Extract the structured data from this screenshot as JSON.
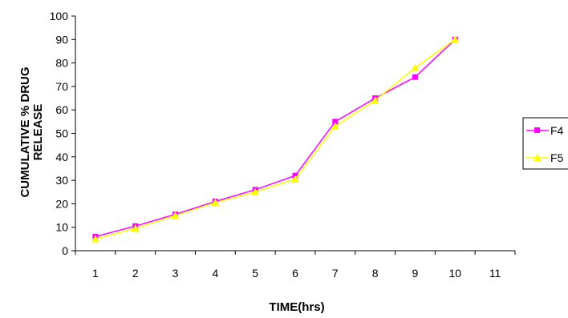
{
  "chart_data": {
    "type": "line",
    "x": [
      1,
      2,
      3,
      4,
      5,
      6,
      7,
      8,
      9,
      10
    ],
    "x_ticks": [
      "1",
      "2",
      "3",
      "4",
      "5",
      "6",
      "7",
      "8",
      "9",
      "10",
      "11"
    ],
    "y_ticks": [
      "0",
      "10",
      "20",
      "30",
      "40",
      "50",
      "60",
      "70",
      "80",
      "90",
      "100"
    ],
    "xlabel": "TIME(hrs)",
    "ylabel_line1": "CUMULATIVE % DRUG",
    "ylabel_line2": "RELEASE",
    "ylim": [
      0,
      100
    ],
    "grid": false,
    "legend_position": "right (clipped)",
    "series": [
      {
        "name": "F4",
        "color": "#ff00ff",
        "marker": "square",
        "values": [
          6,
          10.5,
          15.5,
          21,
          26,
          32,
          55,
          65,
          74,
          90
        ]
      },
      {
        "name": "F5",
        "color": "#ffff00",
        "marker": "triangle",
        "values": [
          5,
          9.5,
          15,
          20.5,
          25,
          30.5,
          53,
          64,
          78,
          90
        ]
      }
    ]
  }
}
